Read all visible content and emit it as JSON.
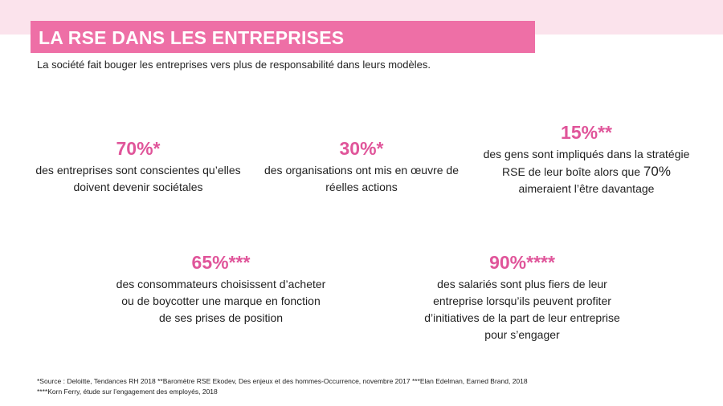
{
  "header": {
    "title": "LA RSE DANS LES ENTREPRISES",
    "subtitle": "La société fait bouger les entreprises vers plus de responsabilité dans leurs modèles."
  },
  "stats": [
    {
      "value": "70%*",
      "lines": [
        "des entreprises sont conscientes qu’elles",
        "doivent devenir sociétales"
      ]
    },
    {
      "value": "30%*",
      "lines": [
        "des organisations ont mis en œuvre de",
        "réelles actions"
      ]
    },
    {
      "value": "15%**",
      "lines": [
        "des gens sont impliqués dans la stratégie",
        "aimeraient l’être davantage"
      ],
      "line2_prefix": "RSE de leur boîte alors que ",
      "line2_highlight": "70%"
    },
    {
      "value": "65%***",
      "lines": [
        "des consommateurs choisissent d’acheter",
        "ou de boycotter une marque en fonction",
        "de ses prises de position"
      ]
    },
    {
      "value": "90%****",
      "lines": [
        "des salariés sont plus fiers de leur",
        "entreprise lorsqu’ils peuvent profiter",
        "d’initiatives de la part de leur entreprise",
        "pour s’engager"
      ]
    }
  ],
  "footnotes": [
    "*Source : Deloitte, Tendances RH 2018 **Baromètre RSE Ekodev, Des enjeux et des hommes-Occurrence, novembre 2017 ***Elan Edelman, Earned Brand, 2018",
    "****Korn Ferry, étude sur l’engagement des employés, 2018"
  ],
  "colors": {
    "accent": "#ee6fa6",
    "stat_value": "#e0559a",
    "top_band": "#fbe3ec"
  }
}
